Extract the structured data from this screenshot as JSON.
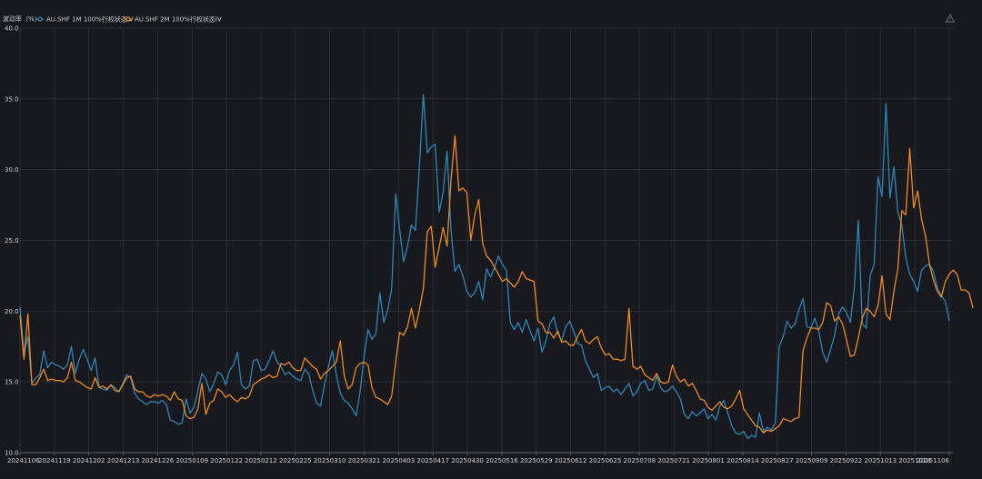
{
  "chart_data": {
    "type": "line",
    "ylabel": "波动率（%）",
    "xlabel": "",
    "ylim": [
      10,
      40
    ],
    "yticks": [
      "10.0",
      "15.0",
      "20.0",
      "25.0",
      "30.0",
      "35.0",
      "40.0"
    ],
    "x_tick_labels": [
      "20241106",
      "20241119",
      "20241202",
      "20241213",
      "20241226",
      "20250109",
      "20250122",
      "20250212",
      "20250225",
      "20250310",
      "20250321",
      "20250403",
      "20250417",
      "20250430",
      "20250516",
      "20250529",
      "20250612",
      "20250625",
      "20250708",
      "20250721",
      "20250801",
      "20250814",
      "20250827",
      "20250909",
      "20250922",
      "20251013",
      "20251024",
      "20251106"
    ],
    "legend_position": "top-left",
    "grid": true,
    "series": [
      {
        "name": "AU.SHF 1M 100%行权状态IV",
        "color": "#2f86b8",
        "values": [
          20.3,
          17.0,
          18.2,
          14.9,
          15.3,
          15.5,
          17.2,
          16.0,
          16.4,
          16.2,
          16.1,
          15.9,
          16.2,
          17.5,
          15.6,
          16.6,
          17.3,
          16.6,
          15.8,
          16.7,
          14.6,
          14.5,
          14.4,
          14.8,
          14.6,
          14.3,
          14.9,
          15.5,
          15.3,
          14.2,
          13.8,
          13.6,
          13.4,
          13.6,
          13.6,
          13.5,
          13.7,
          13.4,
          12.3,
          12.2,
          12.0,
          12.1,
          13.8,
          12.8,
          13.2,
          14.4,
          15.6,
          15.2,
          14.3,
          14.9,
          15.7,
          15.5,
          14.8,
          15.8,
          16.2,
          17.1,
          14.8,
          14.5,
          14.7,
          16.5,
          16.6,
          15.8,
          15.9,
          16.5,
          17.2,
          16.4,
          16.1,
          15.5,
          15.7,
          15.4,
          15.2,
          15.1,
          15.9,
          15.6,
          14.4,
          13.5,
          13.3,
          14.8,
          16.1,
          17.2,
          15.5,
          14.2,
          13.7,
          13.5,
          13.1,
          12.6,
          14.3,
          16.8,
          18.7,
          18.0,
          18.4,
          21.3,
          19.2,
          20.1,
          21.6,
          28.3,
          25.8,
          23.5,
          24.6,
          26.1,
          25.7,
          30.2,
          35.3,
          31.2,
          31.6,
          31.8,
          27.0,
          28.4,
          31.3,
          25.7,
          22.8,
          23.3,
          22.5,
          21.4,
          21.0,
          21.3,
          22.1,
          20.8,
          23.0,
          22.4,
          23.1,
          23.9,
          23.3,
          22.9,
          19.2,
          18.7,
          19.2,
          18.5,
          19.4,
          18.6,
          17.9,
          18.8,
          17.1,
          17.9,
          19.1,
          19.6,
          18.4,
          17.9,
          18.9,
          19.3,
          18.6,
          17.7,
          17.6,
          16.5,
          15.9,
          15.3,
          15.6,
          14.4,
          14.6,
          14.7,
          14.3,
          14.5,
          14.1,
          14.5,
          14.9,
          14.0,
          14.3,
          14.9,
          15.1,
          14.4,
          14.5,
          15.4,
          14.6,
          14.3,
          14.4,
          14.7,
          14.3,
          13.8,
          12.7,
          12.4,
          12.9,
          12.6,
          12.8,
          13.1,
          12.4,
          12.7,
          12.3,
          13.3,
          13.7,
          12.8,
          11.9,
          11.4,
          11.3,
          11.5,
          11.0,
          11.2,
          11.1,
          12.8,
          11.5,
          11.8,
          11.6,
          12.1,
          17.5,
          18.2,
          19.3,
          18.8,
          19.1,
          20.1,
          20.9,
          18.9,
          18.8,
          19.5,
          18.6,
          17.1,
          16.4,
          17.3,
          18.3,
          19.8,
          20.3,
          19.9,
          19.2,
          21.7,
          26.4,
          19.1,
          18.8,
          22.5,
          23.3,
          29.5,
          28.1,
          34.7,
          28.0,
          30.2,
          27.0,
          26.1,
          23.8,
          22.6,
          22.1,
          21.4,
          22.9,
          23.2,
          23.3,
          22.8,
          21.6,
          21.1,
          20.7,
          19.3
        ]
      },
      {
        "name": "AU.SHF 2M 100%行权状态IV",
        "color": "#f08a1c",
        "values": [
          19.7,
          16.6,
          19.8,
          14.8,
          14.8,
          15.3,
          15.9,
          15.1,
          15.2,
          15.1,
          15.1,
          15.0,
          15.3,
          16.4,
          15.1,
          15.0,
          14.8,
          14.6,
          14.5,
          15.3,
          14.6,
          14.7,
          14.5,
          14.8,
          14.4,
          14.3,
          14.8,
          15.3,
          15.4,
          14.5,
          14.3,
          14.3,
          14.0,
          13.9,
          14.1,
          14.0,
          14.1,
          14.0,
          13.7,
          14.3,
          13.8,
          13.7,
          12.6,
          12.4,
          12.5,
          13.1,
          14.9,
          12.7,
          13.5,
          13.7,
          14.5,
          14.3,
          13.9,
          14.1,
          13.8,
          13.6,
          13.9,
          13.8,
          14.0,
          14.8,
          15.0,
          15.2,
          15.3,
          15.5,
          15.3,
          15.4,
          16.3,
          16.2,
          16.4,
          16.0,
          15.8,
          15.8,
          16.7,
          16.4,
          16.1,
          15.9,
          15.2,
          15.6,
          15.8,
          16.1,
          16.4,
          17.9,
          15.4,
          14.5,
          14.8,
          16.0,
          16.3,
          16.4,
          16.2,
          14.6,
          13.9,
          13.8,
          13.6,
          13.4,
          14.0,
          16.4,
          18.5,
          18.3,
          18.9,
          20.2,
          18.8,
          20.1,
          21.6,
          25.6,
          26.0,
          23.1,
          24.5,
          25.9,
          24.6,
          29.3,
          32.4,
          28.5,
          28.7,
          28.4,
          25.0,
          26.8,
          27.9,
          24.8,
          23.9,
          23.6,
          23.1,
          22.6,
          22.1,
          22.3,
          22.0,
          21.7,
          22.1,
          22.8,
          22.3,
          22.2,
          22.1,
          19.3,
          19.1,
          18.5,
          18.5,
          18.1,
          18.6,
          17.8,
          17.9,
          17.6,
          17.6,
          18.2,
          18.7,
          17.9,
          17.7,
          18.0,
          18.2,
          17.4,
          16.9,
          17.0,
          16.6,
          16.6,
          16.5,
          16.6,
          20.2,
          16.1,
          15.9,
          16.1,
          15.5,
          15.3,
          15.1,
          15.6,
          15.0,
          14.9,
          15.0,
          16.2,
          15.4,
          15.0,
          15.2,
          14.7,
          14.9,
          14.4,
          13.8,
          13.7,
          13.2,
          13.0,
          13.3,
          13.6,
          13.2,
          13.1,
          13.3,
          13.8,
          14.4,
          13.1,
          12.7,
          12.3,
          11.9,
          11.8,
          11.4,
          11.6,
          11.5,
          11.7,
          11.9,
          12.4,
          12.3,
          12.2,
          12.4,
          12.5,
          17.2,
          18.1,
          18.8,
          18.8,
          18.7,
          19.2,
          20.6,
          20.4,
          19.3,
          19.6,
          19.1,
          18.0,
          16.8,
          16.9,
          18.1,
          19.5,
          20.2,
          20.0,
          19.6,
          20.4,
          22.5,
          19.8,
          19.4,
          21.4,
          23.0,
          27.1,
          26.8,
          31.5,
          27.3,
          28.5,
          26.5,
          25.3,
          23.3,
          22.2,
          21.4,
          21.0,
          22.1,
          22.6,
          22.9,
          22.6,
          21.5,
          21.5,
          21.3,
          20.2
        ]
      }
    ]
  }
}
